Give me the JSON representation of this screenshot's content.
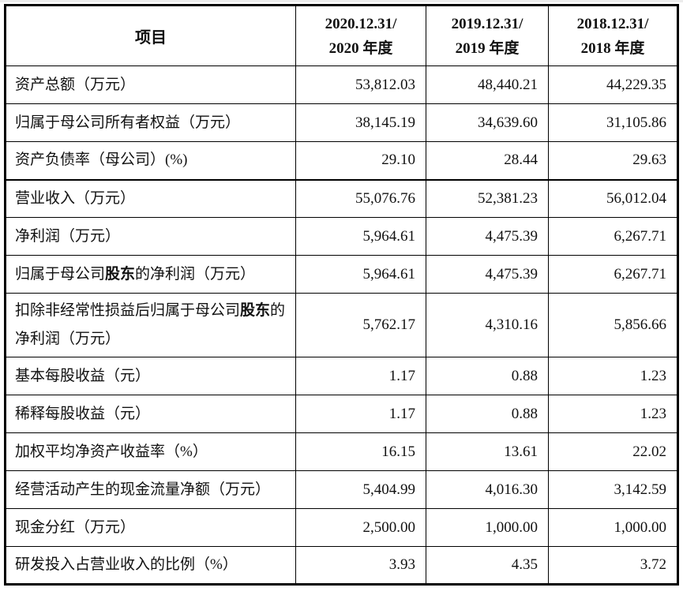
{
  "colors": {
    "border": "#000000",
    "text": "#111111",
    "background": "#ffffff"
  },
  "table": {
    "header": {
      "item_col": "项目",
      "period_cols": [
        {
          "line1": "2020.12.31/",
          "line2": "2020 年度"
        },
        {
          "line1": "2019.12.31/",
          "line2": "2019 年度"
        },
        {
          "line1": "2018.12.31/",
          "line2": "2018 年度"
        }
      ]
    },
    "rows": [
      {
        "label_parts": [
          {
            "t": "资产总额（万元）",
            "b": false
          }
        ],
        "values": [
          "53,812.03",
          "48,440.21",
          "44,229.35"
        ]
      },
      {
        "label_parts": [
          {
            "t": "归属于母公司所有者权益（万元）",
            "b": false
          }
        ],
        "values": [
          "38,145.19",
          "34,639.60",
          "31,105.86"
        ]
      },
      {
        "label_parts": [
          {
            "t": "资产负债率（母公司）(%)",
            "b": false
          }
        ],
        "values": [
          "29.10",
          "28.44",
          "29.63"
        ]
      },
      {
        "label_parts": [
          {
            "t": "营业收入（万元）",
            "b": false
          }
        ],
        "values": [
          "55,076.76",
          "52,381.23",
          "56,012.04"
        ],
        "thick_top": true
      },
      {
        "label_parts": [
          {
            "t": "净利润（万元）",
            "b": false
          }
        ],
        "values": [
          "5,964.61",
          "4,475.39",
          "6,267.71"
        ]
      },
      {
        "label_parts": [
          {
            "t": "归属于母公司",
            "b": false
          },
          {
            "t": "股东",
            "b": true
          },
          {
            "t": "的净利润（万元）",
            "b": false
          }
        ],
        "values": [
          "5,964.61",
          "4,475.39",
          "6,267.71"
        ]
      },
      {
        "label_parts": [
          {
            "t": "扣除非经常性损益后归属于母公司",
            "b": false
          },
          {
            "t": "股东",
            "b": true
          },
          {
            "t": "的净利润（万元）",
            "b": false
          }
        ],
        "values": [
          "5,762.17",
          "4,310.16",
          "5,856.66"
        ],
        "tall": true
      },
      {
        "label_parts": [
          {
            "t": "基本每股收益（元）",
            "b": false
          }
        ],
        "values": [
          "1.17",
          "0.88",
          "1.23"
        ]
      },
      {
        "label_parts": [
          {
            "t": "稀释每股收益（元）",
            "b": false
          }
        ],
        "values": [
          "1.17",
          "0.88",
          "1.23"
        ]
      },
      {
        "label_parts": [
          {
            "t": "加权平均净资产收益率（%）",
            "b": false
          }
        ],
        "values": [
          "16.15",
          "13.61",
          "22.02"
        ]
      },
      {
        "label_parts": [
          {
            "t": "经营活动产生的现金流量净额（万元）",
            "b": false
          }
        ],
        "values": [
          "5,404.99",
          "4,016.30",
          "3,142.59"
        ]
      },
      {
        "label_parts": [
          {
            "t": "现金分红（万元）",
            "b": false
          }
        ],
        "values": [
          "2,500.00",
          "1,000.00",
          "1,000.00"
        ]
      },
      {
        "label_parts": [
          {
            "t": "研发投入占营业收入的比例（%）",
            "b": false
          }
        ],
        "values": [
          "3.93",
          "4.35",
          "3.72"
        ]
      }
    ]
  }
}
